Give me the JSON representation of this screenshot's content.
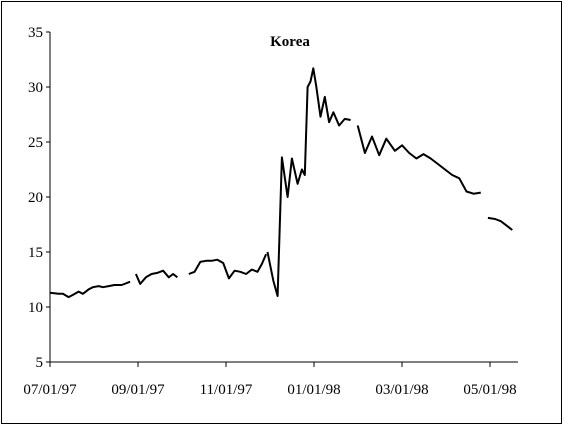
{
  "chart_data": {
    "type": "line",
    "title": "Korea",
    "xlabel": "",
    "ylabel": "",
    "ylim": [
      5,
      35
    ],
    "yticks": [
      "5",
      "10",
      "15",
      "20",
      "25",
      "30",
      "35"
    ],
    "xticks": [
      "07/01/97",
      "09/01/97",
      "11/01/97",
      "01/01/98",
      "03/01/98",
      "05/01/98"
    ],
    "grid": false,
    "legend": "none",
    "line_color": "#000000",
    "segments": [
      {
        "x": [
          "1997-07-01",
          "1997-07-07",
          "1997-07-10",
          "1997-07-14",
          "1997-07-17",
          "1997-07-21",
          "1997-07-24",
          "1997-07-28",
          "1997-07-31",
          "1997-08-04",
          "1997-08-07",
          "1997-08-11",
          "1997-08-15",
          "1997-08-20",
          "1997-08-26"
        ],
        "y": [
          11.3,
          11.2,
          11.2,
          10.9,
          11.1,
          11.4,
          11.2,
          11.6,
          11.8,
          11.9,
          11.8,
          11.9,
          12.0,
          12.0,
          12.3
        ]
      },
      {
        "x": [
          "1997-08-30",
          "1997-09-02",
          "1997-09-06",
          "1997-09-10",
          "1997-09-14",
          "1997-09-18",
          "1997-09-22",
          "1997-09-25",
          "1997-09-28"
        ],
        "y": [
          13.0,
          12.1,
          12.7,
          13.0,
          13.1,
          13.3,
          12.7,
          13.0,
          12.7
        ]
      },
      {
        "x": [
          "1997-10-06",
          "1997-10-10",
          "1997-10-14",
          "1997-10-18",
          "1997-10-22",
          "1997-10-26",
          "1997-10-30",
          "1997-11-03",
          "1997-11-07",
          "1997-11-11",
          "1997-11-15",
          "1997-11-19",
          "1997-11-23",
          "1997-11-26",
          "1997-11-29"
        ],
        "y": [
          13.0,
          13.2,
          14.1,
          14.2,
          14.2,
          14.3,
          14.0,
          12.6,
          13.3,
          13.2,
          13.0,
          13.4,
          13.2,
          13.9,
          14.8
        ]
      },
      {
        "x": [
          "1997-11-30",
          "1997-12-04",
          "1997-12-07",
          "1997-12-10",
          "1997-12-14",
          "1997-12-17",
          "1997-12-21",
          "1997-12-24",
          "1997-12-26",
          "1997-12-28",
          "1997-12-30",
          "1998-01-01",
          "1998-01-03",
          "1998-01-06",
          "1998-01-09",
          "1998-01-12",
          "1998-01-15",
          "1998-01-19",
          "1998-01-23",
          "1998-01-27"
        ],
        "y": [
          15.0,
          12.4,
          11.0,
          23.6,
          20.0,
          23.5,
          21.2,
          22.5,
          22.0,
          30.0,
          30.5,
          31.7,
          30.1,
          27.3,
          29.1,
          26.8,
          27.7,
          26.5,
          27.1,
          27.0
        ]
      },
      {
        "x": [
          "1998-02-01",
          "1998-02-06",
          "1998-02-11",
          "1998-02-16",
          "1998-02-21",
          "1998-02-27",
          "1998-03-04",
          "1998-03-09",
          "1998-03-14",
          "1998-03-19",
          "1998-03-24",
          "1998-03-29",
          "1998-04-03",
          "1998-04-08",
          "1998-04-13",
          "1998-04-18",
          "1998-04-23",
          "1998-04-28"
        ],
        "y": [
          26.5,
          24.0,
          25.5,
          23.8,
          25.3,
          24.2,
          24.7,
          24.0,
          23.5,
          23.9,
          23.5,
          23.0,
          22.5,
          22.0,
          21.7,
          20.5,
          20.3,
          20.4
        ]
      },
      {
        "x": [
          "1998-05-03",
          "1998-05-08",
          "1998-05-12",
          "1998-05-16",
          "1998-05-20"
        ],
        "y": [
          18.1,
          18.0,
          17.8,
          17.4,
          17.0
        ]
      }
    ]
  }
}
